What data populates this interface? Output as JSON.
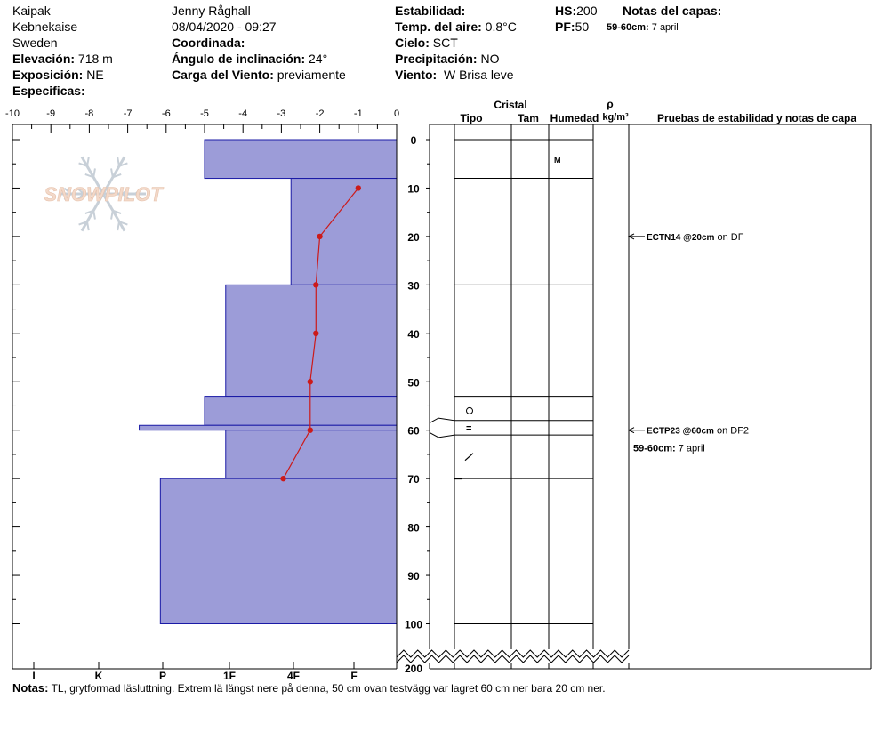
{
  "header": {
    "location": "Kaipak",
    "area": "Kebnekaise",
    "country": "Sweden",
    "observer": "Jenny Råghall",
    "datetime": "08/04/2020 - 09:27",
    "elevation_label": "Elevación:",
    "elevation_value": "718 m",
    "aspect_label": "Exposición:",
    "aspect_value": "NE",
    "specifics_label": "Especificas:",
    "coordinate_label": "Coordinada:",
    "slope_label": "Ángulo de inclinación:",
    "slope_value": "24°",
    "wind_load_label": "Carga del Viento:",
    "wind_load_value": "previamente",
    "stability_label": "Estabilidad:",
    "air_temp_label": "Temp. del aire:",
    "air_temp_value": "0.8°C",
    "sky_label": "Cielo:",
    "sky_value": "SCT",
    "precip_label": "Precipitación:",
    "precip_value": "NO",
    "wind_label": "Viento:",
    "wind_value": "W Brisa leve",
    "hs_label": "HS:",
    "hs_value": "200",
    "pf_label": "PF:",
    "pf_value": "50",
    "layer_notes_label": "Notas del capas:",
    "layer_notes_range": "59-60cm:",
    "layer_notes_text": "7 april"
  },
  "logo_text": "SNOWPILOT",
  "columns": {
    "cristal": "Cristal",
    "tipo": "Tipo",
    "tam": "Tam",
    "humedad": "Humedad",
    "rho": "ρ",
    "density_unit": "kg/m³",
    "tests": "Pruebas de estabilidad y notas de capa"
  },
  "chart_data": {
    "type": "snow_profile",
    "depth_axis": {
      "ticks": [
        0,
        10,
        20,
        30,
        40,
        50,
        60,
        70,
        80,
        90,
        100
      ],
      "extra_tick": 200,
      "range": [
        0,
        110
      ],
      "direction": "down"
    },
    "temperature_axis": {
      "ticks": [
        -10,
        -9,
        -8,
        -7,
        -6,
        -5,
        -4,
        -3,
        -2,
        -1,
        0
      ],
      "range": [
        -10,
        0
      ]
    },
    "hardness_axis": {
      "labels": [
        "I",
        "K",
        "P",
        "1F",
        "4F",
        "F"
      ]
    },
    "hardness_layers": [
      {
        "top": 0,
        "bottom": 8,
        "temp_equiv": -5.0
      },
      {
        "top": 8,
        "bottom": 30,
        "temp_equiv": -2.75
      },
      {
        "top": 30,
        "bottom": 53,
        "temp_equiv": -4.45
      },
      {
        "top": 53,
        "bottom": 59,
        "temp_equiv": -5.0
      },
      {
        "top": 59,
        "bottom": 60,
        "temp_equiv": -6.7
      },
      {
        "top": 60,
        "bottom": 70,
        "temp_equiv": -4.45
      },
      {
        "top": 70,
        "bottom": 100,
        "temp_equiv": -6.15
      }
    ],
    "temperature_profile": [
      {
        "depth": 10,
        "temp": -1.0
      },
      {
        "depth": 20,
        "temp": -2.0
      },
      {
        "depth": 30,
        "temp": -2.1
      },
      {
        "depth": 40,
        "temp": -2.1
      },
      {
        "depth": 50,
        "temp": -2.25
      },
      {
        "depth": 60,
        "temp": -2.25
      },
      {
        "depth": 70,
        "temp": -2.95
      }
    ],
    "layer_boundaries": [
      0,
      8,
      30,
      53,
      58,
      61,
      70,
      100
    ],
    "layer_entries": [
      {
        "depth": 4,
        "column": "humedad",
        "text": "M"
      },
      {
        "depth": 56,
        "column": "tipo",
        "symbol": "circle"
      },
      {
        "depth": 59.5,
        "column": "tipo",
        "text": "="
      },
      {
        "depth": 65.5,
        "column": "tipo",
        "symbol": "slash"
      }
    ],
    "tests": [
      {
        "depth": 20,
        "code": "ECTN14 @20cm",
        "detail": "on DF"
      },
      {
        "depth": 60,
        "code": "ECTP23 @60cm",
        "detail": "on DF2"
      }
    ],
    "layer_note": {
      "depth": 60,
      "range": "59-60cm:",
      "text": "7 april"
    }
  },
  "notes": {
    "label": "Notas:",
    "text": "TL, grytformad läsluttning. Extrem lä längst nere på denna, 50 cm ovan testvägg var lagret 60 cm ner bara 20 cm ner."
  },
  "colors": {
    "hardness_fill": "#9c9cd8",
    "hardness_stroke": "#1a1aa6",
    "temperature_line": "#cc1a1a",
    "logo": "#f3d9c9",
    "snowflake": "#c8d0d8"
  }
}
